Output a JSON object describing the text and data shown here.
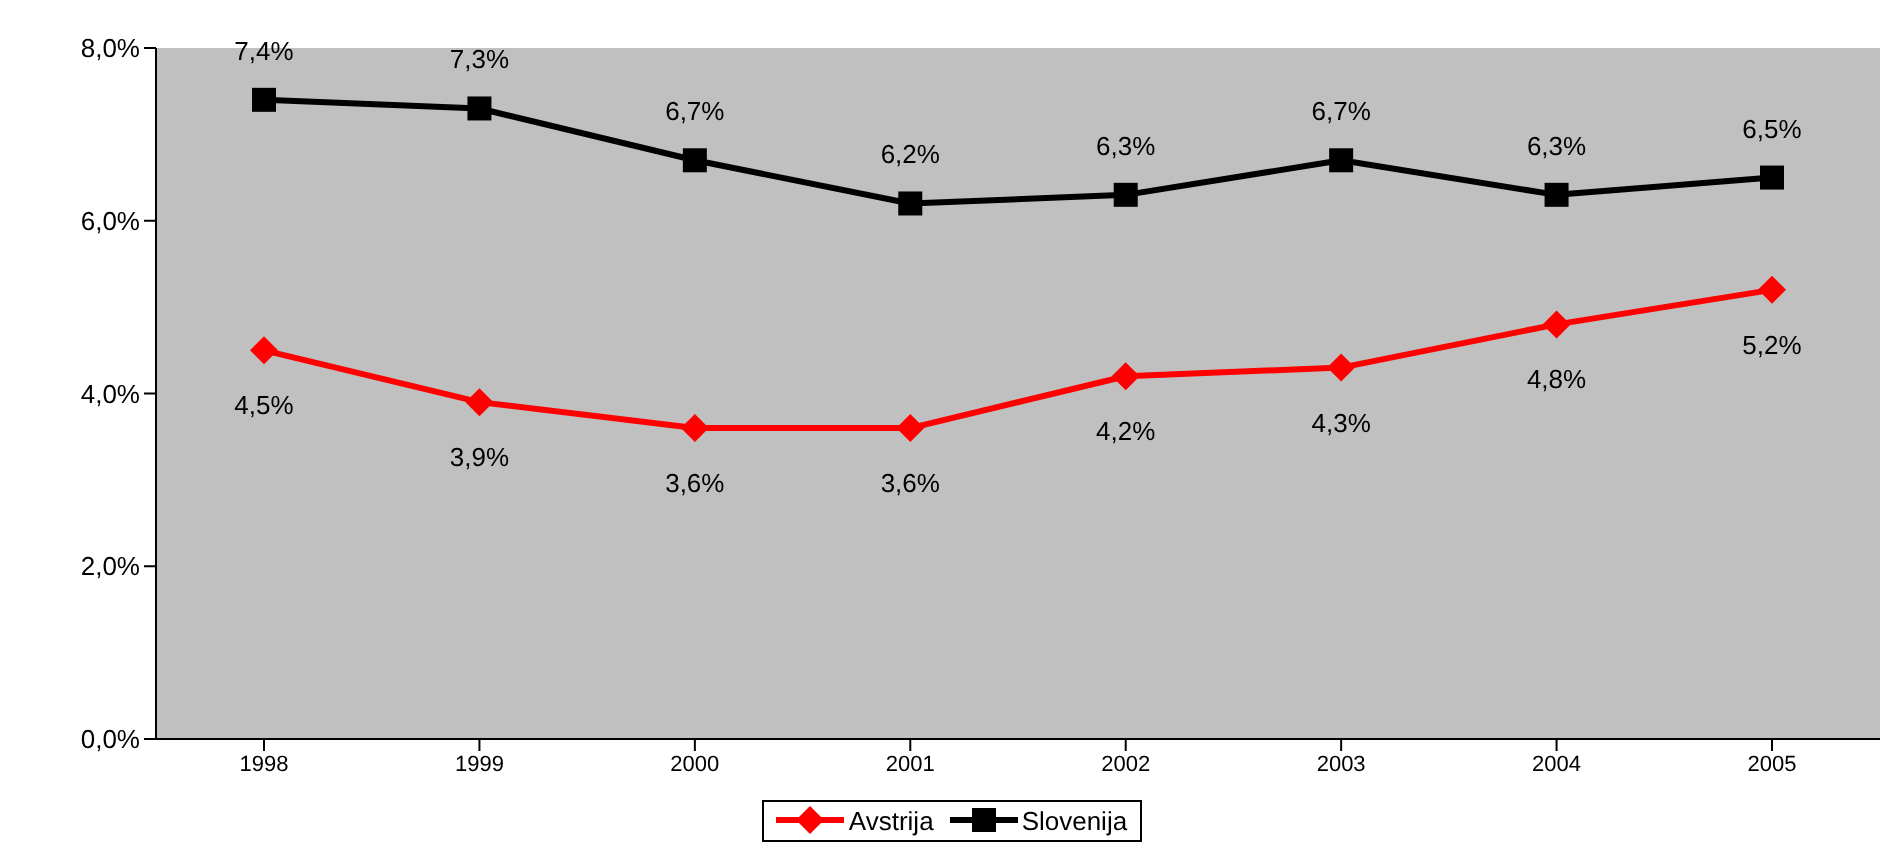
{
  "chart_data": {
    "type": "line",
    "categories": [
      "1998",
      "1999",
      "2000",
      "2001",
      "2002",
      "2003",
      "2004",
      "2005"
    ],
    "series": [
      {
        "name": "Avstrija",
        "color": "#ff0000",
        "marker": "diamond",
        "values": [
          4.5,
          3.9,
          3.6,
          3.6,
          4.2,
          4.3,
          4.8,
          5.2
        ],
        "value_labels": [
          "4,5%",
          "3,9%",
          "3,6%",
          "3,6%",
          "4,2%",
          "4,3%",
          "4,8%",
          "5,2%"
        ]
      },
      {
        "name": "Slovenija",
        "color": "#000000",
        "marker": "square",
        "values": [
          7.4,
          7.3,
          6.7,
          6.2,
          6.3,
          6.7,
          6.3,
          6.5
        ],
        "value_labels": [
          "7,4%",
          "7,3%",
          "6,7%",
          "6,2%",
          "6,3%",
          "6,7%",
          "6,3%",
          "6,5%"
        ]
      }
    ],
    "ylim": [
      0,
      8
    ],
    "yticks": [
      {
        "value": 0,
        "label": "0,0%"
      },
      {
        "value": 2,
        "label": "2,0%"
      },
      {
        "value": 4,
        "label": "4,0%"
      },
      {
        "value": 6,
        "label": "6,0%"
      },
      {
        "value": 8,
        "label": "8,0%"
      }
    ],
    "grid": false,
    "legend": "bottom"
  }
}
